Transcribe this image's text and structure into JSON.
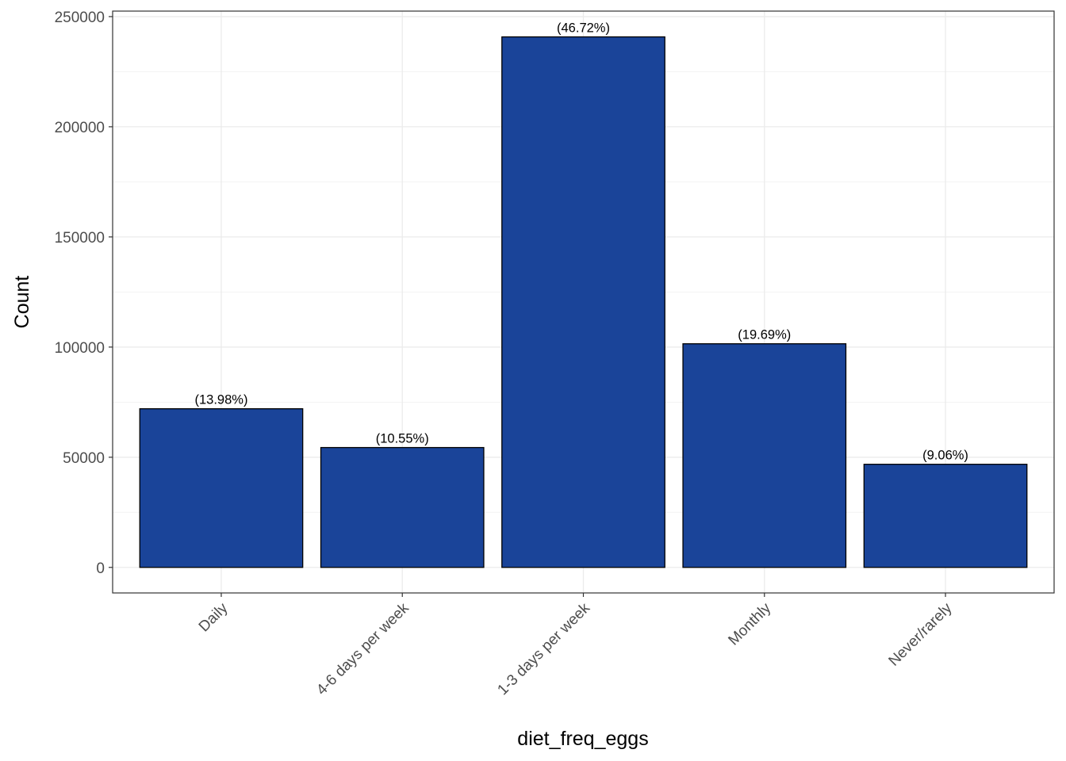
{
  "chart_data": {
    "type": "bar",
    "categories": [
      "Daily",
      "4-6 days per week",
      "1-3 days per week",
      "Monthly",
      "Never/rarely"
    ],
    "values": [
      72000,
      54400,
      240800,
      101500,
      46800
    ],
    "data_labels": [
      "(13.98%)",
      "(10.55%)",
      "(46.72%)",
      "(19.69%)",
      "(9.06%)"
    ],
    "xlabel": "diet_freq_eggs",
    "ylabel": "Count",
    "ylim": [
      -11600,
      252500
    ],
    "yticks": [
      0,
      50000,
      100000,
      150000,
      200000,
      250000
    ],
    "ytick_labels": [
      "0",
      "50000",
      "100000",
      "150000",
      "200000",
      "250000"
    ],
    "grid": true,
    "legend": "none",
    "colors": {
      "bar_fill": "#1a4499",
      "bar_stroke": "#000000",
      "grid_major": "#ebebeb",
      "grid_minor": "#f2f2f2",
      "panel_border": "#333333"
    }
  }
}
